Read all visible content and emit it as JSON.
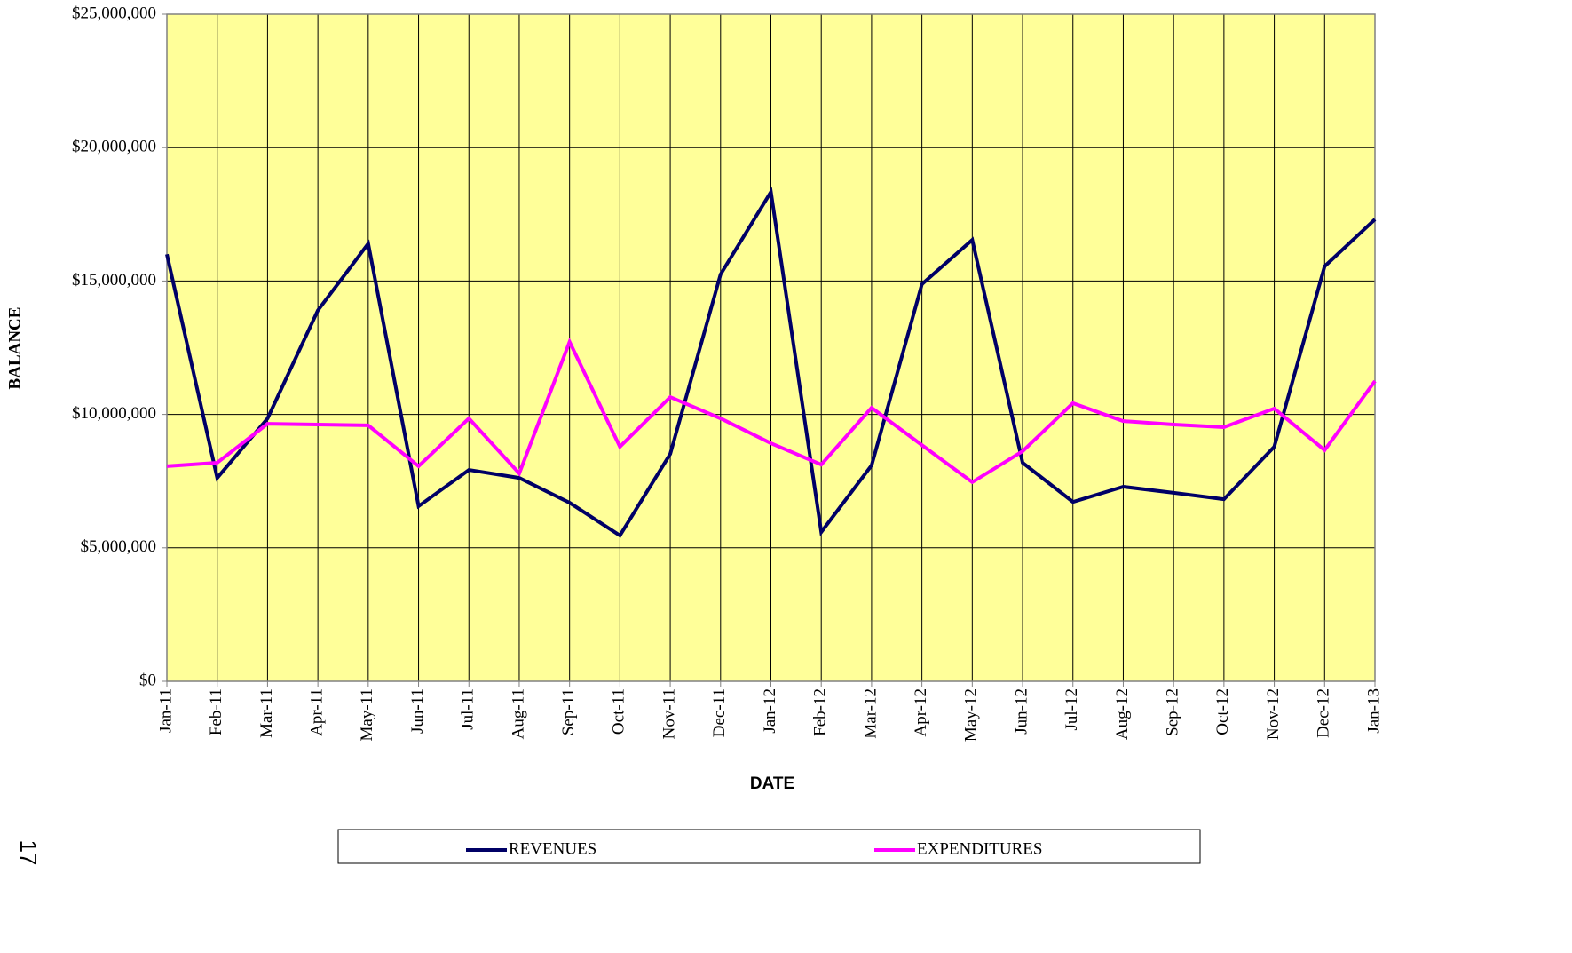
{
  "chart_data": {
    "type": "line",
    "y_label": "BALANCE",
    "x_label": "DATE",
    "page_number": "17",
    "categories": [
      "Jan-11",
      "Feb-11",
      "Mar-11",
      "Apr-11",
      "May-11",
      "Jun-11",
      "Jul-11",
      "Aug-11",
      "Sep-11",
      "Oct-11",
      "Nov-11",
      "Dec-11",
      "Jan-12",
      "Feb-12",
      "Mar-12",
      "Apr-12",
      "May-12",
      "Jun-12",
      "Jul-12",
      "Aug-12",
      "Sep-12",
      "Oct-12",
      "Nov-12",
      "Dec-12",
      "Jan-13"
    ],
    "series": [
      {
        "name": "REVENUES",
        "color": "#000066",
        "values": [
          16000000,
          7620000,
          9850000,
          13900000,
          16400000,
          6560000,
          7920000,
          7620000,
          6690000,
          5460000,
          8520000,
          15250000,
          18340000,
          5590000,
          8090000,
          14880000,
          16540000,
          8190000,
          6720000,
          7290000,
          7060000,
          6820000,
          8790000,
          15550000,
          17310000
        ]
      },
      {
        "name": "EXPENDITURES",
        "color": "#ff00ff",
        "values": [
          8060000,
          8190000,
          9650000,
          9620000,
          9590000,
          8060000,
          9850000,
          7790000,
          12720000,
          8790000,
          10650000,
          9850000,
          8920000,
          8120000,
          10250000,
          8850000,
          7460000,
          8620000,
          10420000,
          9750000,
          9620000,
          9520000,
          10220000,
          8660000,
          11250000
        ]
      }
    ],
    "ylim": [
      0,
      25000000
    ],
    "yticks": [
      {
        "value": 0,
        "label": "$0"
      },
      {
        "value": 5000000,
        "label": "$5,000,000"
      },
      {
        "value": 10000000,
        "label": "$10,000,000"
      },
      {
        "value": 15000000,
        "label": "$15,000,000"
      },
      {
        "value": 20000000,
        "label": "$20,000,000"
      },
      {
        "value": 25000000,
        "label": "$25,000,000"
      }
    ],
    "grid": true,
    "plot_background": "#ffff99",
    "legend": "bottom"
  }
}
